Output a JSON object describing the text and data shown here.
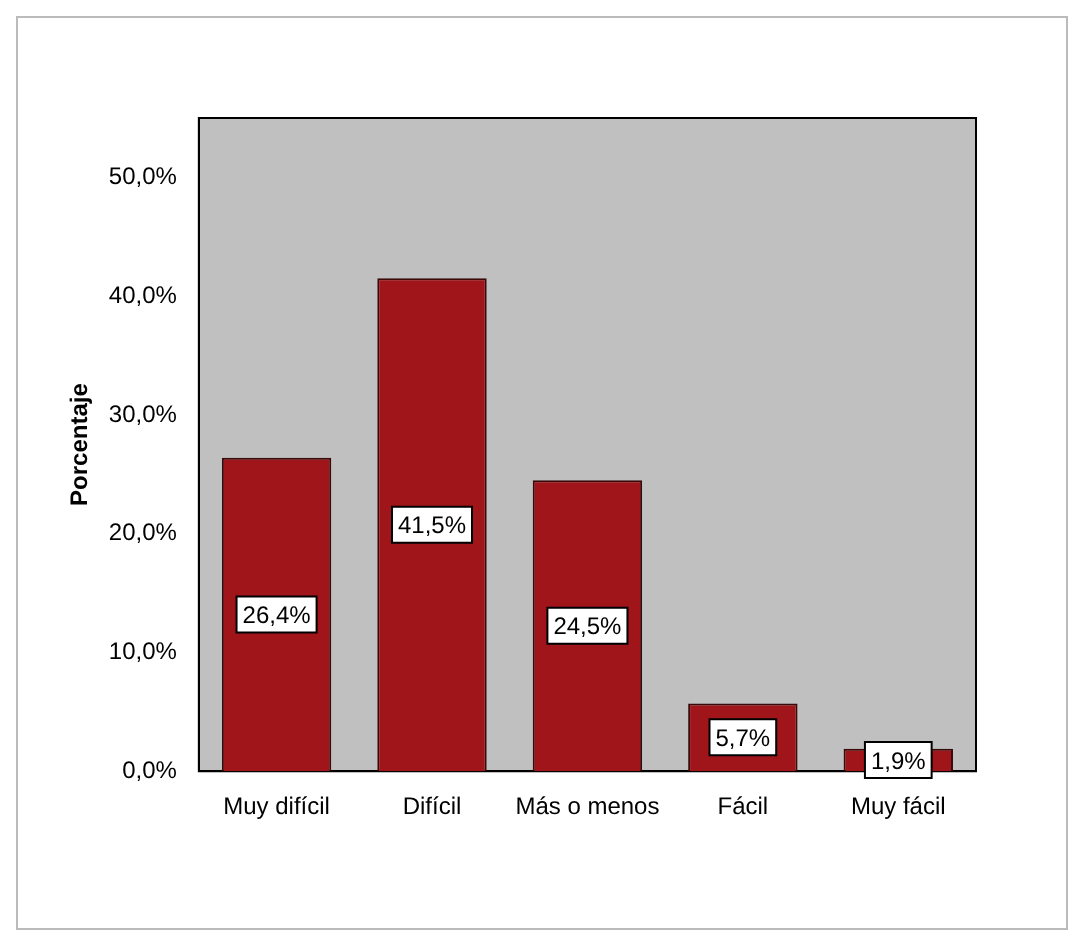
{
  "chart_data": {
    "type": "bar",
    "ylabel": "Porcentaje",
    "categories": [
      "Muy difícil",
      "Difícil",
      "Más o menos",
      "Fácil",
      "Muy fácil"
    ],
    "values": [
      26.4,
      41.5,
      24.5,
      5.7,
      1.9
    ],
    "value_labels": [
      "26,4%",
      "41,5%",
      "24,5%",
      "5,7%",
      "1,9%"
    ],
    "color": "#a0151a",
    "ylim": [
      0,
      55
    ],
    "yticks": [
      {
        "value": 0,
        "label": "0,0%"
      },
      {
        "value": 10,
        "label": "10,0%"
      },
      {
        "value": 20,
        "label": "20,0%"
      },
      {
        "value": 30,
        "label": "30,0%"
      },
      {
        "value": 40,
        "label": "40,0%"
      },
      {
        "value": 50,
        "label": "50,0%"
      }
    ],
    "grid": false,
    "legend": false
  }
}
